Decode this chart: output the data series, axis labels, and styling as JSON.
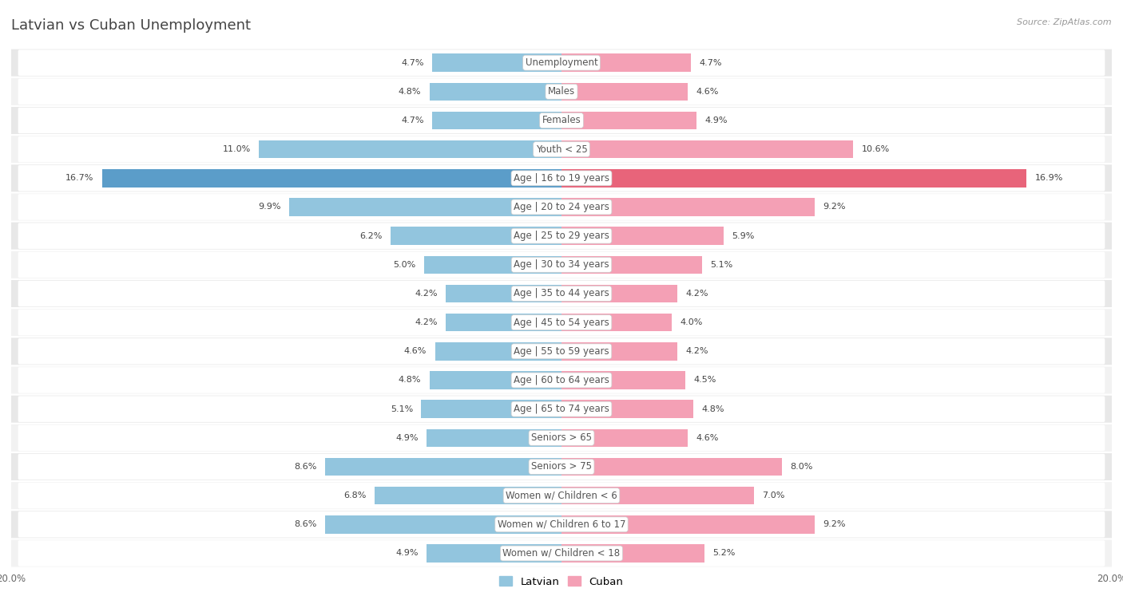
{
  "title": "Latvian vs Cuban Unemployment",
  "source": "Source: ZipAtlas.com",
  "categories": [
    "Unemployment",
    "Males",
    "Females",
    "Youth < 25",
    "Age | 16 to 19 years",
    "Age | 20 to 24 years",
    "Age | 25 to 29 years",
    "Age | 30 to 34 years",
    "Age | 35 to 44 years",
    "Age | 45 to 54 years",
    "Age | 55 to 59 years",
    "Age | 60 to 64 years",
    "Age | 65 to 74 years",
    "Seniors > 65",
    "Seniors > 75",
    "Women w/ Children < 6",
    "Women w/ Children 6 to 17",
    "Women w/ Children < 18"
  ],
  "latvian": [
    4.7,
    4.8,
    4.7,
    11.0,
    16.7,
    9.9,
    6.2,
    5.0,
    4.2,
    4.2,
    4.6,
    4.8,
    5.1,
    4.9,
    8.6,
    6.8,
    8.6,
    4.9
  ],
  "cuban": [
    4.7,
    4.6,
    4.9,
    10.6,
    16.9,
    9.2,
    5.9,
    5.1,
    4.2,
    4.0,
    4.2,
    4.5,
    4.8,
    4.6,
    8.0,
    7.0,
    9.2,
    5.2
  ],
  "latvian_color": "#92c5de",
  "cuban_color": "#f4a0b5",
  "latvian_highlight_color": "#5b9dc9",
  "cuban_highlight_color": "#e8647a",
  "highlight_row": 4,
  "bar_height": 0.62,
  "xlim": 20.0,
  "bg_color": "#ffffff",
  "row_color_even": "#e8e8e8",
  "row_color_odd": "#f2f2f2",
  "title_fontsize": 13,
  "label_fontsize": 8.5,
  "value_fontsize": 8,
  "legend_fontsize": 9.5
}
